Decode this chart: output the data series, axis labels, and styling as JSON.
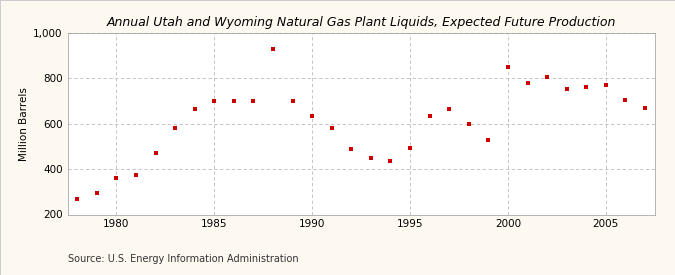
{
  "title": "Annual Utah and Wyoming Natural Gas Plant Liquids, Expected Future Production",
  "ylabel": "Million Barrels",
  "source": "Source: U.S. Energy Information Administration",
  "background_color": "#fef9f0",
  "plot_bg_color": "#ffffff",
  "marker_color": "#cc0000",
  "xlim": [
    1977.5,
    2007.5
  ],
  "ylim": [
    200,
    1000
  ],
  "yticks": [
    200,
    400,
    600,
    800,
    1000
  ],
  "ytick_labels": [
    "200",
    "400",
    "600",
    "800",
    "1,000"
  ],
  "xticks": [
    1980,
    1985,
    1990,
    1995,
    2000,
    2005
  ],
  "years": [
    1978,
    1979,
    1980,
    1981,
    1982,
    1983,
    1984,
    1985,
    1986,
    1987,
    1988,
    1989,
    1990,
    1991,
    1992,
    1993,
    1994,
    1995,
    1996,
    1997,
    1998,
    1999,
    2000,
    2001,
    2002,
    2003,
    2004,
    2005,
    2006,
    2007
  ],
  "values": [
    270,
    295,
    360,
    375,
    470,
    580,
    665,
    700,
    700,
    700,
    930,
    700,
    635,
    580,
    490,
    450,
    435,
    495,
    635,
    665,
    600,
    530,
    850,
    780,
    805,
    755,
    760,
    770,
    705,
    670
  ],
  "title_fontsize": 9,
  "axis_fontsize": 7.5,
  "source_fontsize": 7,
  "marker_size": 12
}
